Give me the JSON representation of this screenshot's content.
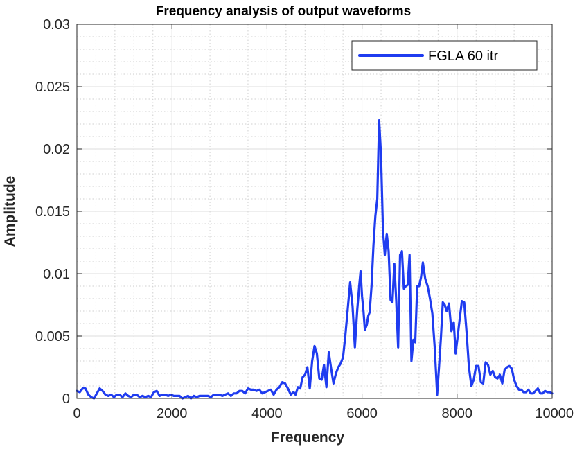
{
  "chart_data": {
    "type": "line",
    "title": "Frequency analysis of output waveforms",
    "xlabel": "Frequency",
    "ylabel": "Amplitude",
    "xlim": [
      0,
      10000
    ],
    "ylim": [
      0,
      0.03
    ],
    "x_ticks": [
      0,
      2000,
      4000,
      6000,
      8000,
      10000
    ],
    "x_tick_labels": [
      "0",
      "2000",
      "4000",
      "6000",
      "8000",
      "10000"
    ],
    "y_ticks": [
      0,
      0.005,
      0.01,
      0.015,
      0.02,
      0.025,
      0.03
    ],
    "y_tick_labels": [
      "0",
      "0.005",
      "0.01",
      "0.015",
      "0.02",
      "0.025",
      "0.03"
    ],
    "grid": true,
    "minor_grid": true,
    "legend_position": "top-right",
    "series": [
      {
        "name": "FGLA 60 itr",
        "color": "#1f3cf0",
        "x": [
          0,
          60,
          120,
          180,
          240,
          300,
          360,
          420,
          480,
          540,
          600,
          660,
          720,
          780,
          840,
          900,
          960,
          1020,
          1080,
          1140,
          1200,
          1260,
          1320,
          1380,
          1440,
          1500,
          1560,
          1620,
          1680,
          1740,
          1800,
          1860,
          1920,
          1980,
          2040,
          2100,
          2160,
          2220,
          2280,
          2340,
          2400,
          2460,
          2520,
          2580,
          2640,
          2700,
          2760,
          2820,
          2880,
          2940,
          3000,
          3060,
          3120,
          3180,
          3240,
          3300,
          3360,
          3420,
          3480,
          3540,
          3600,
          3660,
          3720,
          3780,
          3840,
          3900,
          3960,
          4020,
          4080,
          4140,
          4200,
          4260,
          4320,
          4380,
          4440,
          4500,
          4560,
          4600,
          4650,
          4700,
          4750,
          4800,
          4850,
          4900,
          4950,
          5000,
          5050,
          5100,
          5150,
          5200,
          5250,
          5300,
          5350,
          5400,
          5450,
          5500,
          5550,
          5600,
          5650,
          5700,
          5750,
          5800,
          5850,
          5900,
          5940,
          5970,
          6000,
          6030,
          6060,
          6100,
          6130,
          6160,
          6200,
          6240,
          6280,
          6320,
          6360,
          6400,
          6440,
          6480,
          6520,
          6560,
          6600,
          6640,
          6680,
          6720,
          6760,
          6800,
          6840,
          6880,
          6920,
          6960,
          7000,
          7040,
          7080,
          7120,
          7160,
          7200,
          7240,
          7280,
          7330,
          7380,
          7430,
          7480,
          7530,
          7580,
          7620,
          7660,
          7700,
          7740,
          7780,
          7830,
          7880,
          7930,
          7970,
          8010,
          8050,
          8100,
          8150,
          8200,
          8250,
          8300,
          8350,
          8400,
          8450,
          8500,
          8550,
          8600,
          8650,
          8700,
          8750,
          8800,
          8850,
          8900,
          8950,
          9000,
          9050,
          9100,
          9150,
          9200,
          9250,
          9300,
          9350,
          9400,
          9450,
          9500,
          9550,
          9600,
          9650,
          9700,
          9750,
          9800,
          9850,
          9900,
          9950,
          10000
        ],
        "y": [
          0.0006,
          0.0005,
          0.0008,
          0.0008,
          0.0003,
          0.0001,
          0.0,
          0.0004,
          0.0008,
          0.0006,
          0.0003,
          0.0002,
          0.0003,
          0.0001,
          0.0003,
          0.0003,
          0.0001,
          0.0004,
          0.0002,
          0.0001,
          0.0003,
          0.0003,
          0.0001,
          0.0002,
          0.0001,
          0.0002,
          0.0001,
          0.0005,
          0.0006,
          0.0002,
          0.0003,
          0.0003,
          0.0002,
          0.0003,
          0.0002,
          0.0002,
          0.0002,
          0.0,
          0.0001,
          0.0002,
          0.0,
          0.0002,
          0.0001,
          0.0002,
          0.0002,
          0.0002,
          0.0002,
          0.0001,
          0.0003,
          0.0003,
          0.0003,
          0.0002,
          0.0003,
          0.0004,
          0.0002,
          0.0004,
          0.0004,
          0.0006,
          0.0006,
          0.0004,
          0.0008,
          0.0007,
          0.0007,
          0.0006,
          0.0007,
          0.0004,
          0.0005,
          0.0006,
          0.0007,
          0.0003,
          0.0007,
          0.0009,
          0.0013,
          0.0012,
          0.0008,
          0.0003,
          0.0005,
          0.0003,
          0.0009,
          0.0008,
          0.0017,
          0.0019,
          0.0025,
          0.0008,
          0.003,
          0.0042,
          0.0036,
          0.0016,
          0.0015,
          0.0027,
          0.0009,
          0.0037,
          0.0024,
          0.0012,
          0.002,
          0.0025,
          0.0028,
          0.0033,
          0.0051,
          0.0072,
          0.0093,
          0.0074,
          0.0041,
          0.0071,
          0.009,
          0.0102,
          0.0082,
          0.007,
          0.0055,
          0.0059,
          0.0066,
          0.0069,
          0.009,
          0.0123,
          0.0146,
          0.016,
          0.0223,
          0.0195,
          0.0135,
          0.0115,
          0.0132,
          0.0118,
          0.0079,
          0.0077,
          0.0108,
          0.0078,
          0.0041,
          0.0115,
          0.0118,
          0.0088,
          0.009,
          0.0091,
          0.0115,
          0.003,
          0.0047,
          0.0045,
          0.009,
          0.009,
          0.0097,
          0.0109,
          0.0096,
          0.009,
          0.008,
          0.0068,
          0.004,
          0.0003,
          0.0025,
          0.0049,
          0.0077,
          0.0075,
          0.007,
          0.0076,
          0.0054,
          0.0061,
          0.0036,
          0.0049,
          0.0062,
          0.0078,
          0.0077,
          0.0053,
          0.0025,
          0.001,
          0.0015,
          0.0026,
          0.0026,
          0.0013,
          0.0012,
          0.0029,
          0.0027,
          0.0019,
          0.0022,
          0.0017,
          0.0016,
          0.0019,
          0.0012,
          0.0023,
          0.0025,
          0.0026,
          0.0024,
          0.0015,
          0.001,
          0.0007,
          0.0007,
          0.0005,
          0.0005,
          0.0007,
          0.0004,
          0.0004,
          0.0006,
          0.0008,
          0.0004,
          0.0004,
          0.0006,
          0.0005,
          0.0005,
          0.0004
        ]
      }
    ]
  }
}
